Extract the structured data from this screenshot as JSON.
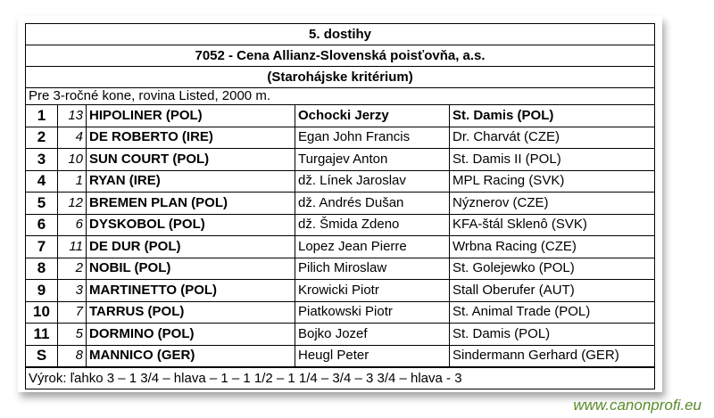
{
  "race": {
    "heading": "5. dostihy",
    "name": "7052 - Cena Allianz-Slovenská poisťovňa, a.s.",
    "subtitle": "(Starohájske kritérium)",
    "conditions": "Pre 3-ročné kone, rovina Listed, 2000 m.",
    "results": [
      {
        "pos": "1",
        "num": "13",
        "horse": "HIPOLINER (POL)",
        "jockey": "Ochocki Jerzy",
        "trainer": "St. Damis (POL)"
      },
      {
        "pos": "2",
        "num": "4",
        "horse": "DE ROBERTO (IRE)",
        "jockey": "Egan John Francis",
        "trainer": "Dr. Charvát (CZE)"
      },
      {
        "pos": "3",
        "num": "10",
        "horse": "SUN COURT (POL)",
        "jockey": "Turgajev Anton",
        "trainer": "St. Damis II (POL)"
      },
      {
        "pos": "4",
        "num": "1",
        "horse": "RYAN (IRE)",
        "jockey": "dž. Línek Jaroslav",
        "trainer": "MPL Racing (SVK)"
      },
      {
        "pos": "5",
        "num": "12",
        "horse": "BREMEN PLAN (POL)",
        "jockey": "dž. Andrés Dušan",
        "trainer": "Nýznerov (CZE)"
      },
      {
        "pos": "6",
        "num": "6",
        "horse": "DYSKOBOL (POL)",
        "jockey": "dž. Šmida Zdeno",
        "trainer": "KFA-štál Sklenô (SVK)"
      },
      {
        "pos": "7",
        "num": "11",
        "horse": "DE DUR (POL)",
        "jockey": "Lopez Jean Pierre",
        "trainer": "Wrbna Racing (CZE)"
      },
      {
        "pos": "8",
        "num": "2",
        "horse": "NOBIL (POL)",
        "jockey": "Pilich Miroslaw",
        "trainer": "St. Golejewko (POL)"
      },
      {
        "pos": "9",
        "num": "3",
        "horse": "MARTINETTO (POL)",
        "jockey": "Krowicki Piotr",
        "trainer": "Stall Oberufer (AUT)"
      },
      {
        "pos": "10",
        "num": "7",
        "horse": "TARRUS (POL)",
        "jockey": "Piatkowski Piotr",
        "trainer": "St. Animal Trade (POL)"
      },
      {
        "pos": "11",
        "num": "5",
        "horse": "DORMINO (POL)",
        "jockey": "Bojko Jozef",
        "trainer": "St. Damis (POL)"
      },
      {
        "pos": "S",
        "num": "8",
        "horse": "MANNICO (GER)",
        "jockey": "Heugl Peter",
        "trainer": "Sindermann Gerhard (GER)"
      }
    ],
    "verdict": "Výrok: ľahko  3 – 1 3/4 – hlava – 1 – 1 1/2 – 1 1/4 – 3/4 – 3 3/4 – hlava - 3"
  },
  "watermark": "www.canonprofi.eu"
}
